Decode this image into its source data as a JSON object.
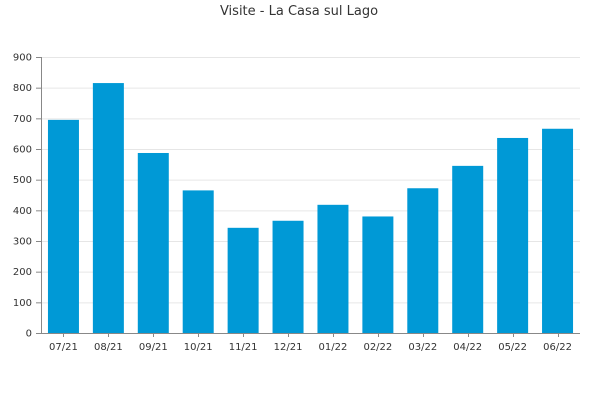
{
  "chart_data": {
    "type": "bar",
    "title": "Visite - La Casa sul Lago",
    "xlabel": "",
    "ylabel": "",
    "categories": [
      "07/21",
      "08/21",
      "09/21",
      "10/21",
      "11/21",
      "12/21",
      "01/22",
      "02/22",
      "03/22",
      "04/22",
      "05/22",
      "06/22"
    ],
    "values": [
      695,
      815,
      587,
      465,
      343,
      366,
      418,
      380,
      472,
      545,
      636,
      666
    ],
    "ylim": [
      0,
      900
    ],
    "yticks": [
      0,
      100,
      200,
      300,
      400,
      500,
      600,
      700,
      800,
      900
    ],
    "grid": true,
    "legend": "none",
    "colors": {
      "bar": "#0099d6",
      "grid": "#e6e6e6",
      "axis": "#888888"
    }
  }
}
